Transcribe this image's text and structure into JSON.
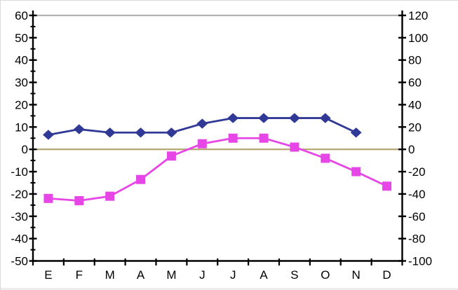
{
  "chart_data": {
    "type": "line",
    "title": "",
    "legend": "none",
    "grid": "off",
    "background": "#ffffff",
    "categories": [
      "E",
      "F",
      "M",
      "A",
      "M",
      "J",
      "J",
      "A",
      "S",
      "O",
      "N",
      "D"
    ],
    "series": [
      {
        "name": "dark-blue-diamond-series",
        "color": "#303a96",
        "marker": "diamond",
        "values_left_scale": [
          6.5,
          9,
          7.5,
          7.5,
          7.5,
          11.5,
          14,
          14,
          14,
          14,
          7.5,
          null
        ],
        "values_right_scale": [
          13,
          18,
          15,
          15,
          15,
          23,
          28,
          28,
          28,
          28,
          15,
          null
        ]
      },
      {
        "name": "magenta-square-series",
        "color": "#e646e6",
        "marker": "square",
        "values_left_scale": [
          -22,
          -23,
          -21,
          -13.5,
          -3,
          2.5,
          5,
          5,
          1,
          -4,
          -10,
          -16.5
        ],
        "values_right_scale": [
          -44,
          -46,
          -42,
          -27,
          -6,
          5,
          10,
          10,
          2,
          -8,
          -20,
          -33
        ]
      }
    ],
    "left_axis": {
      "min": -50,
      "max": 60,
      "major_step": 10,
      "minor_step": 5,
      "tick_labels": [
        "60",
        "50",
        "40",
        "30",
        "20",
        "10",
        "0",
        "-10",
        "-20",
        "-30",
        "-40",
        "-50"
      ]
    },
    "right_axis": {
      "min": -100,
      "max": 120,
      "major_step": 20,
      "tick_labels": [
        "120",
        "100",
        "80",
        "60",
        "40",
        "20",
        "0",
        "-20",
        "-40",
        "-60",
        "-80",
        "-100"
      ]
    },
    "x_axis": {
      "tick_labels": [
        "E",
        "F",
        "M",
        "A",
        "M",
        "J",
        "J",
        "A",
        "S",
        "O",
        "N",
        "D"
      ]
    },
    "reference_lines": [
      {
        "name": "zero-line",
        "value_left_scale": 0,
        "color": "#b3a26e"
      },
      {
        "name": "plot-top-line",
        "value_left_scale": 60,
        "color": "#b3b3b3"
      }
    ],
    "axis_color": "#000000",
    "label_color": "#000000"
  }
}
